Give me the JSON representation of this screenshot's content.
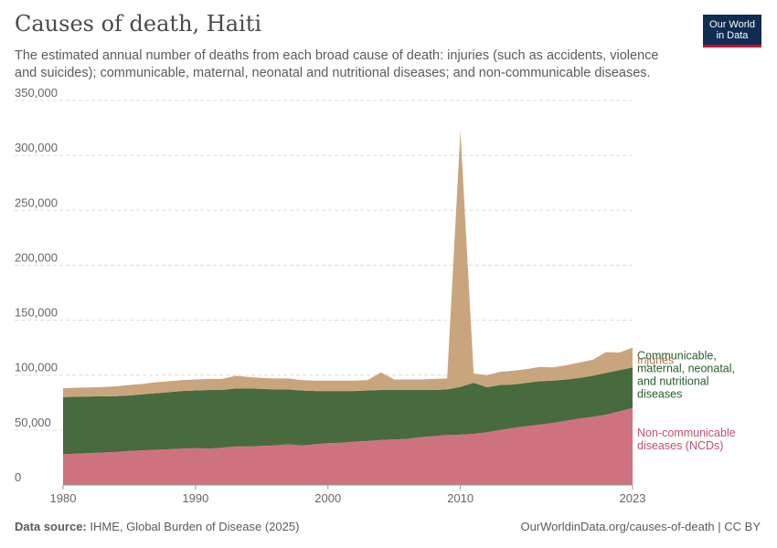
{
  "header": {
    "title": "Causes of death, Haiti",
    "subtitle": "The estimated annual number of deaths from each broad cause of death: injuries (such as accidents, violence and suicides); communicable, maternal, neonatal and nutritional diseases; and non-communicable diseases.",
    "logo_line1": "Our World",
    "logo_line2": "in Data"
  },
  "footer": {
    "source_label": "Data source:",
    "source_text": "IHME, Global Burden of Disease (2025)",
    "url": "OurWorldinData.org/causes-of-death | CC BY"
  },
  "chart_data": {
    "type": "area",
    "stacked": true,
    "title": "Causes of death, Haiti",
    "xlim": [
      1980,
      2023
    ],
    "ylim": [
      0,
      350000
    ],
    "y_ticks": [
      0,
      50000,
      100000,
      150000,
      200000,
      250000,
      300000,
      350000
    ],
    "y_tick_labels": [
      "0",
      "50,000",
      "100,000",
      "150,000",
      "200,000",
      "250,000",
      "300,000",
      "350,000"
    ],
    "x_ticks": [
      1980,
      1990,
      2000,
      2010,
      2023
    ],
    "x_tick_labels": [
      "1980",
      "1990",
      "2000",
      "2010",
      "2023"
    ],
    "grid": "horizontal-dashed",
    "x": [
      1980,
      1981,
      1982,
      1983,
      1984,
      1985,
      1986,
      1987,
      1988,
      1989,
      1990,
      1991,
      1992,
      1993,
      1994,
      1995,
      1996,
      1997,
      1998,
      1999,
      2000,
      2001,
      2002,
      2003,
      2004,
      2005,
      2006,
      2007,
      2008,
      2009,
      2010,
      2011,
      2012,
      2013,
      2014,
      2015,
      2016,
      2017,
      2018,
      2019,
      2020,
      2021,
      2022,
      2023
    ],
    "series": [
      {
        "name": "Non-communicable diseases (NCDs)",
        "label_lines": [
          "Non-communicable",
          "diseases (NCDs)"
        ],
        "color": "#cf7280",
        "label_color": "#c0506a",
        "values": [
          28000,
          28500,
          29000,
          29500,
          30000,
          31000,
          31500,
          32000,
          32500,
          33000,
          33500,
          33000,
          34000,
          35000,
          35000,
          35500,
          36000,
          37000,
          36000,
          37000,
          38000,
          38500,
          39500,
          40000,
          41000,
          41500,
          42000,
          43500,
          44500,
          45500,
          45800,
          46500,
          48000,
          50000,
          52000,
          53500,
          55000,
          56500,
          58500,
          60500,
          62000,
          64000,
          67000,
          70000
        ]
      },
      {
        "name": "Communicable, maternal, neonatal, and nutritional diseases",
        "label_lines": [
          "Communicable,",
          "maternal, neonatal,",
          "and nutritional",
          "diseases"
        ],
        "color": "#476b3e",
        "label_color": "#285c2a",
        "values": [
          52000,
          51800,
          51500,
          51200,
          50800,
          50500,
          51000,
          51500,
          52000,
          52500,
          52500,
          53500,
          52500,
          52800,
          52800,
          52000,
          51000,
          50000,
          50000,
          48500,
          47500,
          47000,
          46000,
          46000,
          45500,
          45000,
          44500,
          43000,
          42000,
          41500,
          43500,
          46500,
          41000,
          41000,
          39500,
          39500,
          39500,
          38500,
          37500,
          37000,
          37500,
          38000,
          37500,
          37000
        ]
      },
      {
        "name": "Injuries",
        "label_lines": [
          "Injuries"
        ],
        "color": "#c9a57e",
        "label_color": "#a87a4f",
        "values": [
          8000,
          8200,
          8300,
          8500,
          9000,
          9500,
          9500,
          10000,
          10000,
          10000,
          10000,
          10000,
          10000,
          11500,
          10500,
          10000,
          10000,
          10000,
          9500,
          9500,
          9500,
          9500,
          9500,
          9500,
          16000,
          9500,
          9500,
          9500,
          10000,
          10000,
          233000,
          8500,
          11000,
          12000,
          12500,
          12500,
          13000,
          12000,
          13000,
          14000,
          14500,
          19000,
          16000,
          18000
        ]
      }
    ]
  }
}
